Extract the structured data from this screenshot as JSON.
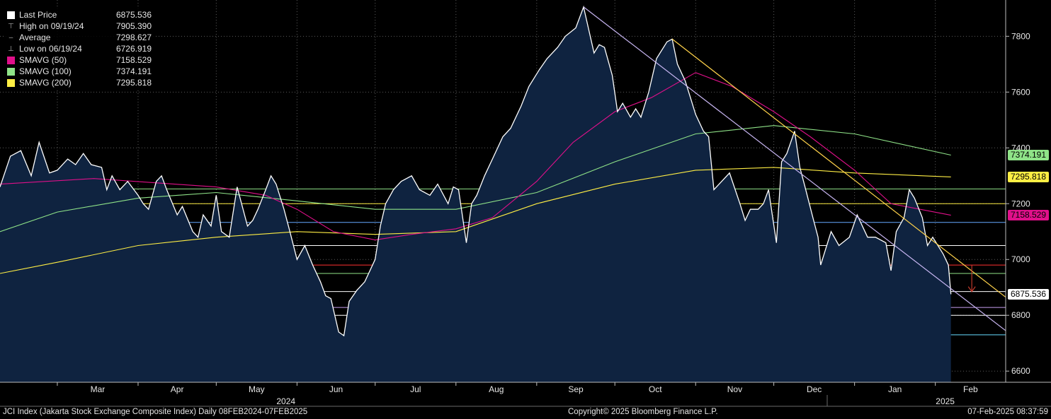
{
  "legend": [
    {
      "label": "Last Price",
      "value": "6875.536",
      "color": "#ffffff",
      "icon": "square"
    },
    {
      "label": "High on 09/19/24",
      "value": "7905.390",
      "color": "#aaaaaa",
      "icon": "high-marker-icon"
    },
    {
      "label": "Average",
      "value": "7298.627",
      "color": "#aaaaaa",
      "icon": "average-marker-icon"
    },
    {
      "label": "Low on 06/19/24",
      "value": "6726.919",
      "color": "#aaaaaa",
      "icon": "low-marker-icon"
    },
    {
      "label": "SMAVG (50)",
      "value": "7158.529",
      "color": "#e0108a",
      "icon": "square"
    },
    {
      "label": "SMAVG (100)",
      "value": "7374.191",
      "color": "#8fe388",
      "icon": "square"
    },
    {
      "label": "SMAVG (200)",
      "value": "7295.818",
      "color": "#ffee44",
      "icon": "square"
    }
  ],
  "tags": [
    {
      "value": "7374.191",
      "y": 7374.191,
      "color": "#8fe388"
    },
    {
      "value": "7295.818",
      "y": 7295.818,
      "color": "#ffee44"
    },
    {
      "value": "7158.529",
      "y": 7158.529,
      "color": "#e0108a"
    },
    {
      "value": "6875.536",
      "y": 6875.536,
      "color": "#ffffff"
    }
  ],
  "footer": {
    "left": "JCI Index (Jakarta Stock Exchange Composite Index)  Daily 08FEB2024-07FEB2025",
    "center": "Copyright© 2025 Bloomberg Finance L.P.",
    "right": "07-Feb-2025 08:37:59"
  },
  "chart_data": {
    "type": "area",
    "x_range": [
      "2024-02-08",
      "2025-02-28"
    ],
    "ylim": [
      6560,
      7930
    ],
    "yticks": [
      6600,
      6800,
      7000,
      7200,
      7400,
      7600,
      7800
    ],
    "months": [
      {
        "label": "Mar",
        "date": "2024-03-01"
      },
      {
        "label": "Apr",
        "date": "2024-04-01"
      },
      {
        "label": "May",
        "date": "2024-05-01"
      },
      {
        "label": "Jun",
        "date": "2024-06-01"
      },
      {
        "label": "Jul",
        "date": "2024-07-01"
      },
      {
        "label": "Aug",
        "date": "2024-08-01"
      },
      {
        "label": "Sep",
        "date": "2024-09-01"
      },
      {
        "label": "Oct",
        "date": "2024-10-01"
      },
      {
        "label": "Nov",
        "date": "2024-11-01"
      },
      {
        "label": "Dec",
        "date": "2024-12-01"
      },
      {
        "label": "Jan",
        "date": "2025-01-01"
      },
      {
        "label": "Feb",
        "date": "2025-02-01"
      }
    ],
    "years": [
      {
        "label": "2024",
        "date": "2024-07-01"
      },
      {
        "label": "2025",
        "date": "2025-01-01"
      }
    ],
    "grid": true,
    "series": [
      {
        "name": "Last Price",
        "color": "#ffffff",
        "points": [
          [
            "2024-02-08",
            7260
          ],
          [
            "2024-02-12",
            7370
          ],
          [
            "2024-02-16",
            7390
          ],
          [
            "2024-02-20",
            7300
          ],
          [
            "2024-02-23",
            7420
          ],
          [
            "2024-02-27",
            7310
          ],
          [
            "2024-03-01",
            7320
          ],
          [
            "2024-03-05",
            7360
          ],
          [
            "2024-03-08",
            7340
          ],
          [
            "2024-03-11",
            7380
          ],
          [
            "2024-03-14",
            7340
          ],
          [
            "2024-03-18",
            7330
          ],
          [
            "2024-03-20",
            7250
          ],
          [
            "2024-03-22",
            7300
          ],
          [
            "2024-03-25",
            7250
          ],
          [
            "2024-03-28",
            7280
          ],
          [
            "2024-04-01",
            7230
          ],
          [
            "2024-04-03",
            7200
          ],
          [
            "2024-04-05",
            7180
          ],
          [
            "2024-04-08",
            7280
          ],
          [
            "2024-04-10",
            7300
          ],
          [
            "2024-04-12",
            7250
          ],
          [
            "2024-04-16",
            7160
          ],
          [
            "2024-04-18",
            7190
          ],
          [
            "2024-04-22",
            7100
          ],
          [
            "2024-04-24",
            7080
          ],
          [
            "2024-04-26",
            7160
          ],
          [
            "2024-04-29",
            7120
          ],
          [
            "2024-05-01",
            7230
          ],
          [
            "2024-05-03",
            7100
          ],
          [
            "2024-05-06",
            7080
          ],
          [
            "2024-05-09",
            7260
          ],
          [
            "2024-05-13",
            7120
          ],
          [
            "2024-05-15",
            7140
          ],
          [
            "2024-05-17",
            7180
          ],
          [
            "2024-05-20",
            7250
          ],
          [
            "2024-05-22",
            7300
          ],
          [
            "2024-05-24",
            7270
          ],
          [
            "2024-05-27",
            7180
          ],
          [
            "2024-05-29",
            7110
          ],
          [
            "2024-06-01",
            7000
          ],
          [
            "2024-06-04",
            7050
          ],
          [
            "2024-06-07",
            6980
          ],
          [
            "2024-06-10",
            6920
          ],
          [
            "2024-06-12",
            6870
          ],
          [
            "2024-06-14",
            6860
          ],
          [
            "2024-06-17",
            6740
          ],
          [
            "2024-06-19",
            6727
          ],
          [
            "2024-06-21",
            6850
          ],
          [
            "2024-06-24",
            6890
          ],
          [
            "2024-06-27",
            6920
          ],
          [
            "2024-07-01",
            7000
          ],
          [
            "2024-07-03",
            7120
          ],
          [
            "2024-07-05",
            7200
          ],
          [
            "2024-07-08",
            7250
          ],
          [
            "2024-07-11",
            7280
          ],
          [
            "2024-07-15",
            7300
          ],
          [
            "2024-07-18",
            7250
          ],
          [
            "2024-07-22",
            7230
          ],
          [
            "2024-07-25",
            7270
          ],
          [
            "2024-07-29",
            7200
          ],
          [
            "2024-07-31",
            7260
          ],
          [
            "2024-08-02",
            7250
          ],
          [
            "2024-08-05",
            7060
          ],
          [
            "2024-08-07",
            7200
          ],
          [
            "2024-08-09",
            7230
          ],
          [
            "2024-08-12",
            7300
          ],
          [
            "2024-08-15",
            7360
          ],
          [
            "2024-08-19",
            7440
          ],
          [
            "2024-08-22",
            7470
          ],
          [
            "2024-08-26",
            7550
          ],
          [
            "2024-08-29",
            7620
          ],
          [
            "2024-09-02",
            7680
          ],
          [
            "2024-09-05",
            7720
          ],
          [
            "2024-09-09",
            7760
          ],
          [
            "2024-09-12",
            7800
          ],
          [
            "2024-09-16",
            7830
          ],
          [
            "2024-09-19",
            7905
          ],
          [
            "2024-09-23",
            7740
          ],
          [
            "2024-09-25",
            7770
          ],
          [
            "2024-09-27",
            7760
          ],
          [
            "2024-09-30",
            7660
          ],
          [
            "2024-10-02",
            7530
          ],
          [
            "2024-10-04",
            7560
          ],
          [
            "2024-10-07",
            7510
          ],
          [
            "2024-10-09",
            7540
          ],
          [
            "2024-10-11",
            7510
          ],
          [
            "2024-10-14",
            7600
          ],
          [
            "2024-10-17",
            7720
          ],
          [
            "2024-10-21",
            7780
          ],
          [
            "2024-10-23",
            7790
          ],
          [
            "2024-10-25",
            7700
          ],
          [
            "2024-10-28",
            7640
          ],
          [
            "2024-10-30",
            7580
          ],
          [
            "2024-11-01",
            7520
          ],
          [
            "2024-11-04",
            7460
          ],
          [
            "2024-11-06",
            7440
          ],
          [
            "2024-11-08",
            7250
          ],
          [
            "2024-11-11",
            7280
          ],
          [
            "2024-11-14",
            7310
          ],
          [
            "2024-11-18",
            7200
          ],
          [
            "2024-11-20",
            7140
          ],
          [
            "2024-11-22",
            7180
          ],
          [
            "2024-11-25",
            7180
          ],
          [
            "2024-11-27",
            7200
          ],
          [
            "2024-11-29",
            7250
          ],
          [
            "2024-12-02",
            7060
          ],
          [
            "2024-12-04",
            7350
          ],
          [
            "2024-12-06",
            7380
          ],
          [
            "2024-12-09",
            7460
          ],
          [
            "2024-12-11",
            7330
          ],
          [
            "2024-12-13",
            7260
          ],
          [
            "2024-12-16",
            7150
          ],
          [
            "2024-12-18",
            7080
          ],
          [
            "2024-12-19",
            6980
          ],
          [
            "2024-12-23",
            7100
          ],
          [
            "2024-12-26",
            7050
          ],
          [
            "2024-12-30",
            7080
          ],
          [
            "2025-01-02",
            7160
          ],
          [
            "2025-01-06",
            7080
          ],
          [
            "2025-01-09",
            7080
          ],
          [
            "2025-01-13",
            7060
          ],
          [
            "2025-01-15",
            6960
          ],
          [
            "2025-01-17",
            7100
          ],
          [
            "2025-01-20",
            7150
          ],
          [
            "2025-01-22",
            7250
          ],
          [
            "2025-01-24",
            7220
          ],
          [
            "2025-01-27",
            7150
          ],
          [
            "2025-01-29",
            7050
          ],
          [
            "2025-01-31",
            7080
          ],
          [
            "2025-02-04",
            7020
          ],
          [
            "2025-02-06",
            6980
          ],
          [
            "2025-02-07",
            6875.536
          ]
        ]
      },
      {
        "name": "SMAVG (50)",
        "color": "#e0108a",
        "points": [
          [
            "2024-02-08",
            7270
          ],
          [
            "2024-03-15",
            7290
          ],
          [
            "2024-04-15",
            7270
          ],
          [
            "2024-05-01",
            7260
          ],
          [
            "2024-05-20",
            7230
          ],
          [
            "2024-06-01",
            7180
          ],
          [
            "2024-06-15",
            7100
          ],
          [
            "2024-07-01",
            7070
          ],
          [
            "2024-07-15",
            7090
          ],
          [
            "2024-08-01",
            7110
          ],
          [
            "2024-08-15",
            7150
          ],
          [
            "2024-09-01",
            7280
          ],
          [
            "2024-09-15",
            7420
          ],
          [
            "2024-10-01",
            7530
          ],
          [
            "2024-10-15",
            7580
          ],
          [
            "2024-11-01",
            7670
          ],
          [
            "2024-11-15",
            7620
          ],
          [
            "2024-12-01",
            7530
          ],
          [
            "2024-12-15",
            7440
          ],
          [
            "2025-01-01",
            7320
          ],
          [
            "2025-01-15",
            7200
          ],
          [
            "2025-02-07",
            7158.529
          ]
        ]
      },
      {
        "name": "SMAVG (100)",
        "color": "#8fe388",
        "points": [
          [
            "2024-02-08",
            7100
          ],
          [
            "2024-03-01",
            7170
          ],
          [
            "2024-04-01",
            7220
          ],
          [
            "2024-05-01",
            7240
          ],
          [
            "2024-06-01",
            7210
          ],
          [
            "2024-07-01",
            7180
          ],
          [
            "2024-08-01",
            7180
          ],
          [
            "2024-09-01",
            7240
          ],
          [
            "2024-10-01",
            7350
          ],
          [
            "2024-11-01",
            7450
          ],
          [
            "2024-12-01",
            7480
          ],
          [
            "2025-01-01",
            7450
          ],
          [
            "2025-02-07",
            7374.191
          ]
        ]
      },
      {
        "name": "SMAVG (200)",
        "color": "#ffee44",
        "points": [
          [
            "2024-02-08",
            6950
          ],
          [
            "2024-03-01",
            6990
          ],
          [
            "2024-04-01",
            7050
          ],
          [
            "2024-05-01",
            7080
          ],
          [
            "2024-06-01",
            7100
          ],
          [
            "2024-07-01",
            7090
          ],
          [
            "2024-08-01",
            7100
          ],
          [
            "2024-09-01",
            7200
          ],
          [
            "2024-10-01",
            7270
          ],
          [
            "2024-11-01",
            7320
          ],
          [
            "2024-12-01",
            7330
          ],
          [
            "2025-01-01",
            7310
          ],
          [
            "2025-02-07",
            7295.818
          ]
        ]
      }
    ],
    "hlines": [
      {
        "y": 7253,
        "color": "#8fe388"
      },
      {
        "y": 7200,
        "color": "#ffee44"
      },
      {
        "y": 7133,
        "color": "#66aaff"
      },
      {
        "y": 7050,
        "color": "#ffffff"
      },
      {
        "y": 6980,
        "color": "#ff3030"
      },
      {
        "y": 6950,
        "color": "#8fe388"
      },
      {
        "y": 6885,
        "color": "#ffffff"
      },
      {
        "y": 6828,
        "color": "#c79ef0"
      },
      {
        "y": 6800,
        "color": "#ffffff"
      },
      {
        "y": 6730,
        "color": "#66ddff"
      }
    ],
    "trendlines": [
      {
        "color": "#c8b6f2",
        "from": [
          "2024-09-19",
          7905
        ],
        "to": [
          "2025-02-28",
          6745
        ]
      },
      {
        "color": "#ffd24a",
        "from": [
          "2024-10-23",
          7790
        ],
        "to": [
          "2025-02-28",
          6865
        ]
      }
    ],
    "annotations": [
      {
        "type": "arrow",
        "color": "#c0392b",
        "date": "2025-02-15",
        "from": 6980,
        "to": 6885
      }
    ]
  }
}
